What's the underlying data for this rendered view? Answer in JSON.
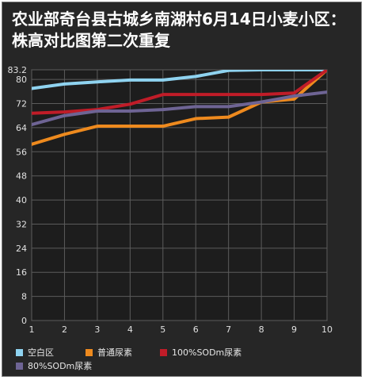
{
  "title": "农业部奇台县古城乡南湖村6月14日小麦小区：株高对比图第二次重复",
  "colors": {
    "background": "#262626",
    "plot_area": "#1d1d1d",
    "grid": "#5c5c5c",
    "axis_text": "#e0e0e0"
  },
  "chart_data": {
    "type": "line",
    "title": "农业部奇台县古城乡南湖村6月14日小麦小区：株高对比图第二次重复",
    "xlabel": "",
    "ylabel": "",
    "x": [
      1,
      2,
      3,
      4,
      5,
      6,
      7,
      8,
      9,
      10
    ],
    "ylim": [
      0,
      83.2
    ],
    "yticks": [
      0,
      8,
      16,
      24,
      32,
      40,
      48,
      56,
      64,
      72,
      80,
      83.2
    ],
    "grid": true,
    "legend_position": "bottom",
    "series": [
      {
        "name": "空白区",
        "color": "#8fd3f0",
        "values": [
          77,
          78.5,
          79.2,
          79.8,
          79.8,
          81,
          83,
          83.5,
          83.4,
          87.5
        ]
      },
      {
        "name": "普通尿素",
        "color": "#ee8a1e",
        "values": [
          58.5,
          61.8,
          64.5,
          64.5,
          64.5,
          67,
          67.5,
          72.5,
          73.5,
          85
        ]
      },
      {
        "name": "100%SODm尿素",
        "color": "#c01c28",
        "values": [
          68.8,
          69.2,
          70,
          71.8,
          75,
          75,
          75,
          75,
          75.5,
          84
        ]
      },
      {
        "name": "80%SODm尿素",
        "color": "#6e6494",
        "values": [
          65,
          68,
          69.5,
          69.5,
          70,
          71,
          71,
          72.5,
          74.5,
          75.8
        ]
      }
    ]
  }
}
